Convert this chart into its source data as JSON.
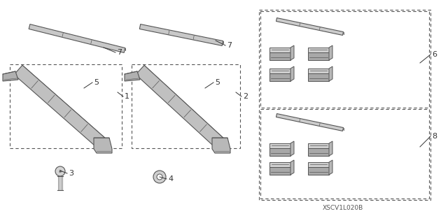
{
  "background_color": "#ffffff",
  "diagram_code": "XSCV1L020B",
  "line_color": "#555555",
  "text_color": "#333333",
  "font_size": 8,
  "fig_w": 6.4,
  "fig_h": 3.19,
  "dpi": 100,
  "rail_color": "#888888",
  "rail_fill": "#cccccc",
  "pad_fill": "#aaaaaa",
  "pad_edge": "#444444"
}
